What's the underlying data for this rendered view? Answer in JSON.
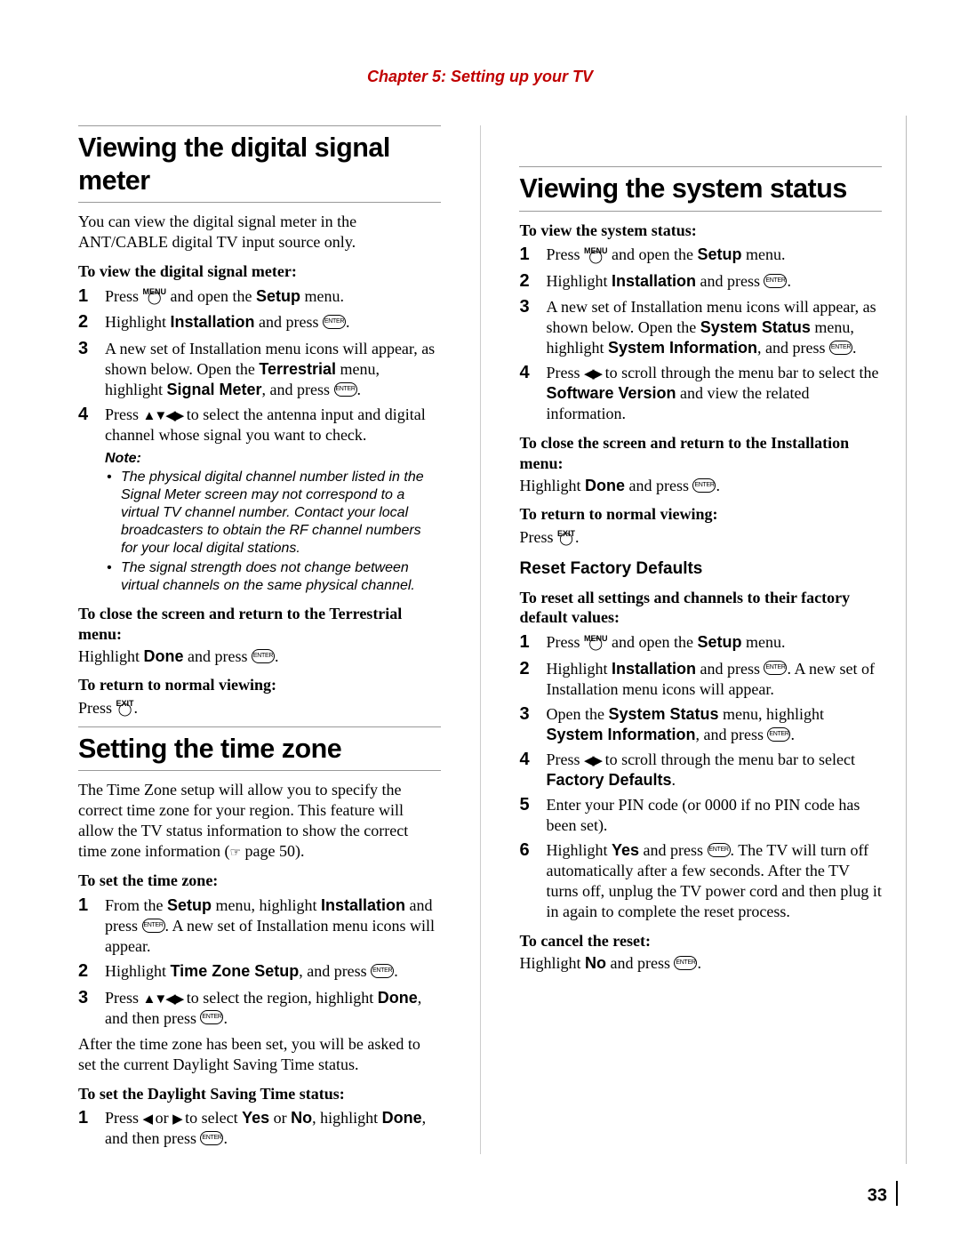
{
  "chapter": "Chapter 5: Setting up your TV",
  "pageNumber": "33",
  "icons": {
    "menuTop": "MENU",
    "exitTop": "EXIT",
    "circle": "◯",
    "enter": "ENTER",
    "arrowsAll": "▲▼◀▶",
    "arrowsLR": "◀▶",
    "arrowL": "◀",
    "arrowR": "▶",
    "ref": "☞"
  },
  "left": {
    "s1": {
      "title": "Viewing the digital signal meter",
      "intro": "You can view the digital signal meter in the ANT/CABLE digital TV input source only.",
      "howto": "To view the digital signal meter:",
      "steps": {
        "1a": "Press ",
        "1b": " and open the ",
        "1c": "Setup",
        "1d": " menu.",
        "2a": "Highlight ",
        "2b": "Installation",
        "2c": " and press ",
        "2d": ".",
        "3a": "A new set of Installation menu icons will appear, as shown below. Open the ",
        "3b": "Terrestrial",
        "3c": " menu, highlight ",
        "3d": "Signal Meter",
        "3e": ", and press ",
        "3f": ".",
        "4a": "Press ",
        "4b": " to select the antenna input and digital channel whose signal you want to check."
      },
      "noteHead": "Note:",
      "notes": {
        "n1": "The physical digital channel number listed in the Signal Meter screen may not correspond to a virtual TV channel number. Contact your local broadcasters to obtain the RF channel numbers for your local digital stations.",
        "n2": "The signal strength does not change between virtual channels on the same physical channel."
      },
      "closeHead": "To close the screen and return to the Terrestrial menu:",
      "closeA": "Highlight ",
      "closeB": "Done",
      "closeC": " and press ",
      "closeD": ".",
      "returnHead": "To return to normal viewing:",
      "returnA": "Press ",
      "returnB": "."
    },
    "s2": {
      "title": "Setting the time zone",
      "introA": "The Time Zone setup will allow you to specify the correct time zone for your region. This feature will allow the TV status information to show the correct time zone information (",
      "introB": " page 50).",
      "howto": "To set the time zone:",
      "steps": {
        "1a": "From the ",
        "1b": "Setup",
        "1c": " menu, highlight ",
        "1d": "Installation",
        "1e": " and press ",
        "1f": ". A new set of Installation menu icons will appear.",
        "2a": "Highlight ",
        "2b": "Time Zone Setup",
        "2c": ", and press ",
        "2d": ".",
        "3a": "Press ",
        "3b": " to select the region, highlight ",
        "3c": "Done",
        "3d": ", and then press ",
        "3e": "."
      },
      "after": "After the time zone has been set, you will be asked to set the current Daylight Saving Time status.",
      "dstHead": "To set the Daylight Saving Time status:",
      "dst": {
        "1a": "Press ",
        "1b": " or ",
        "1c": " to select ",
        "1d": "Yes",
        "1e": " or ",
        "1f": "No",
        "1g": ", highlight ",
        "1h": "Done",
        "1i": ", and then press ",
        "1j": "."
      }
    }
  },
  "right": {
    "s1": {
      "title": "Viewing the system status",
      "howto": "To view the system status:",
      "steps": {
        "1a": "Press ",
        "1b": " and open the ",
        "1c": "Setup",
        "1d": " menu.",
        "2a": "Highlight ",
        "2b": "Installation",
        "2c": " and press ",
        "2d": ".",
        "3a": "A new set of Installation menu icons will appear, as shown below. Open the ",
        "3b": "System Status",
        "3c": " menu, highlight ",
        "3d": "System Information",
        "3e": ", and press ",
        "3f": ".",
        "4a": "Press ",
        "4b": " to scroll through the menu bar to select the ",
        "4c": "Software Version",
        "4d": " and view the related information."
      },
      "closeHead": "To close the screen and return to the Installation menu:",
      "closeA": "Highlight ",
      "closeB": "Done",
      "closeC": " and press ",
      "closeD": ".",
      "returnHead": "To return to normal viewing:",
      "returnA": "Press ",
      "returnB": "."
    },
    "s2": {
      "title": "Reset Factory Defaults",
      "howto": "To reset all settings and channels to their factory default values:",
      "steps": {
        "1a": "Press ",
        "1b": " and open the ",
        "1c": "Setup",
        "1d": " menu.",
        "2a": "Highlight ",
        "2b": "Installation",
        "2c": " and press ",
        "2d": ". A new set of Installation menu icons will appear.",
        "3a": "Open the ",
        "3b": "System Status",
        "3c": " menu, highlight ",
        "3d": "System Information",
        "3e": ", and press ",
        "3f": ".",
        "4a": "Press ",
        "4b": " to scroll through the menu bar to select ",
        "4c": "Factory Defaults",
        "4d": ".",
        "5a": "Enter your PIN code (or 0000 if no PIN code has been set).",
        "6a": "Highlight ",
        "6b": "Yes",
        "6c": " and press ",
        "6d": ". The TV will turn off automatically after a few seconds. After the TV turns off, unplug the TV power cord and then plug it in again to complete the reset process."
      },
      "cancelHead": "To cancel the reset:",
      "cancelA": "Highlight ",
      "cancelB": "No",
      "cancelC": " and press ",
      "cancelD": "."
    }
  }
}
